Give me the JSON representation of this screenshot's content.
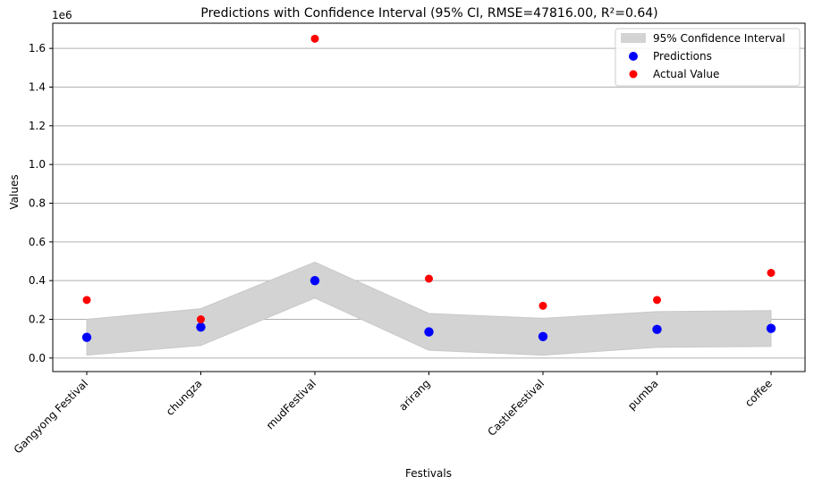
{
  "chart_data": {
    "type": "scatter",
    "title": "Predictions with Confidence Interval (95% CI, RMSE=47816.00, R²=0.64)",
    "xlabel": "Festivals",
    "ylabel": "Values",
    "y_offset_label": "1e6",
    "categories": [
      "Gangyong Festival",
      "chungza",
      "mudFestival",
      "arirang",
      "CastleFestival",
      "pumba",
      "coffee"
    ],
    "ylim": [
      -0.07,
      1.73
    ],
    "yticks": [
      0.0,
      0.2,
      0.4,
      0.6,
      0.8,
      1.0,
      1.2,
      1.4,
      1.6
    ],
    "ytick_labels": [
      "0.0",
      "0.2",
      "0.4",
      "0.6",
      "0.8",
      "1.0",
      "1.2",
      "1.4",
      "1.6"
    ],
    "grid": "y",
    "legend_position": "top-right",
    "confidence_interval": {
      "name": "95% Confidence Interval",
      "color": "#d3d3d3",
      "lower": [
        0.015,
        0.065,
        0.31,
        0.04,
        0.015,
        0.055,
        0.06
      ],
      "upper": [
        0.2,
        0.255,
        0.495,
        0.23,
        0.205,
        0.24,
        0.245
      ]
    },
    "series": [
      {
        "name": "Predictions",
        "color": "#0000ff",
        "values": [
          0.107,
          0.16,
          0.4,
          0.135,
          0.111,
          0.148,
          0.153
        ]
      },
      {
        "name": "Actual Value",
        "color": "#ff0000",
        "values": [
          0.3,
          0.2,
          1.65,
          0.41,
          0.27,
          0.3,
          0.44
        ]
      }
    ]
  }
}
